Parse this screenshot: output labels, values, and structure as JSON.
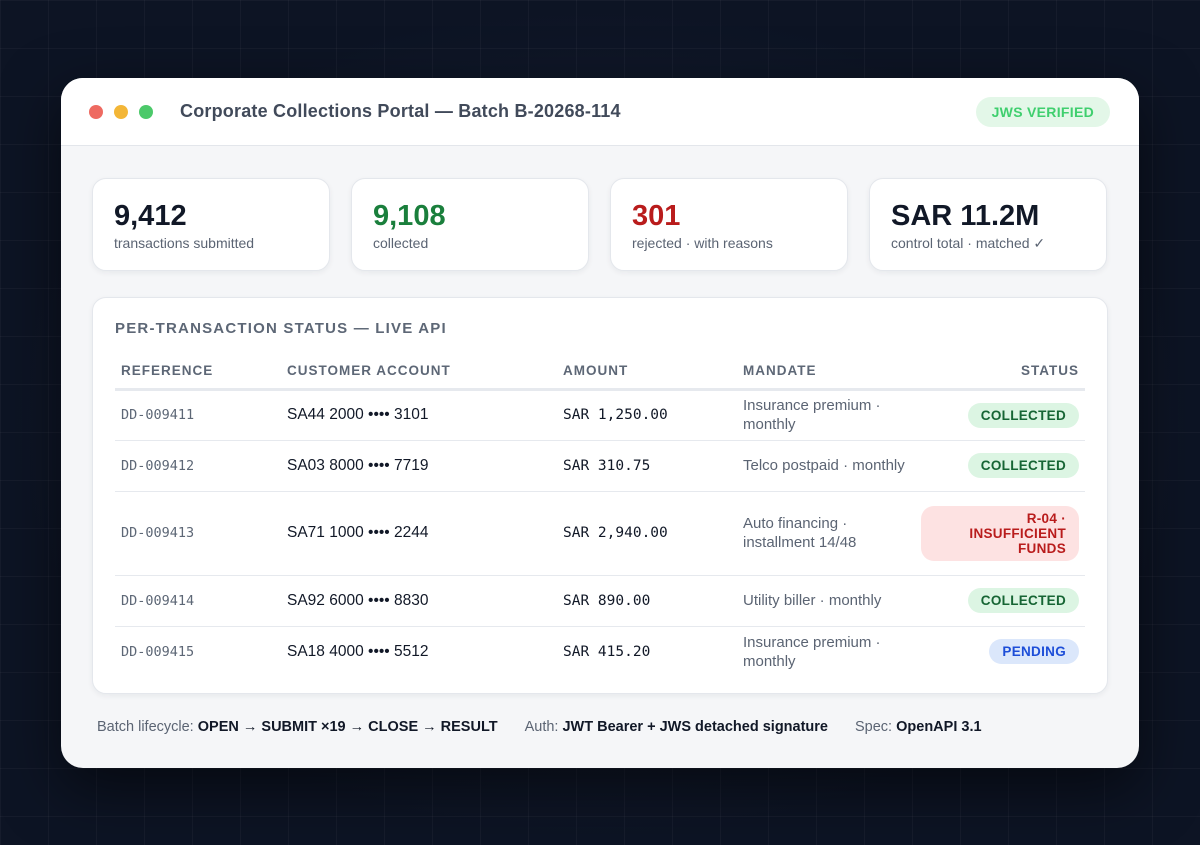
{
  "window": {
    "title": "Corporate Collections Portal — Batch B-20268-114",
    "badge": "JWS VERIFIED"
  },
  "stats": [
    {
      "value": "9,412",
      "label": "transactions submitted"
    },
    {
      "value": "9,108",
      "label": "collected"
    },
    {
      "value": "301",
      "label": "rejected · with reasons"
    },
    {
      "value": "SAR 11.2M",
      "label": "control total · matched ✓"
    }
  ],
  "panel": {
    "title": "PER-TRANSACTION STATUS — LIVE API",
    "columns": [
      "REFERENCE",
      "CUSTOMER ACCOUNT",
      "AMOUNT",
      "MANDATE",
      "STATUS"
    ],
    "rows": [
      {
        "reference": "DD-009411",
        "account": "SA44 2000 •••• 3101",
        "amount": "SAR 1,250.00",
        "mandate": "Insurance premium · monthly",
        "status": "COLLECTED"
      },
      {
        "reference": "DD-009412",
        "account": "SA03 8000 •••• 7719",
        "amount": "SAR 310.75",
        "mandate": "Telco postpaid · monthly",
        "status": "COLLECTED"
      },
      {
        "reference": "DD-009413",
        "account": "SA71 1000 •••• 2244",
        "amount": "SAR 2,940.00",
        "mandate": "Auto financing · installment 14/48",
        "status": "R-04 · INSUFFICIENT FUNDS"
      },
      {
        "reference": "DD-009414",
        "account": "SA92 6000 •••• 8830",
        "amount": "SAR 890.00",
        "mandate": "Utility biller · monthly",
        "status": "COLLECTED"
      },
      {
        "reference": "DD-009415",
        "account": "SA18 4000 •••• 5512",
        "amount": "SAR 415.20",
        "mandate": "Insurance premium · monthly",
        "status": "PENDING"
      }
    ]
  },
  "footer": {
    "lifecycle_label": "Batch lifecycle:",
    "lifecycle_value": "OPEN → SUBMIT ×19 → CLOSE → RESULT",
    "auth_label": "Auth:",
    "auth_value": "JWT Bearer + JWS detached signature",
    "spec_label": "Spec:",
    "spec_value": "OpenAPI 3.1"
  },
  "colors": {
    "collected": "#166534",
    "rejected": "#b91c1c",
    "pending": "#1d4ed8",
    "verified": "#3fcf6e"
  }
}
